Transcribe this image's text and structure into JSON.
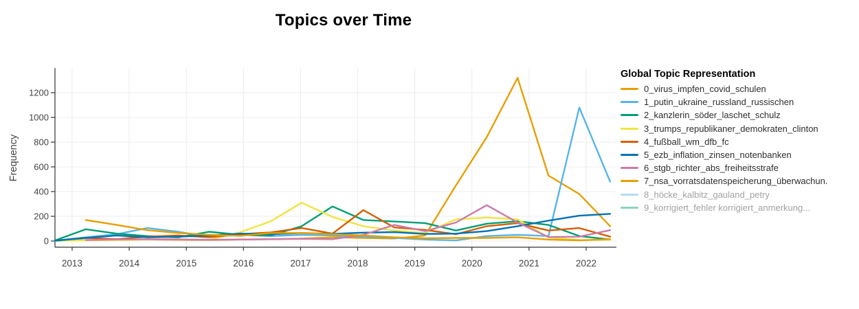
{
  "title": "Topics over Time",
  "y_axis_title": "Frequency",
  "legend": {
    "title": "Global Topic Representation",
    "items": [
      {
        "label": "0_virus_impfen_covid_schulen",
        "color": "#E69F00",
        "muted": false
      },
      {
        "label": "1_putin_ukraine_russland_russischen",
        "color": "#56B4E9",
        "muted": false
      },
      {
        "label": "2_kanzlerin_söder_laschet_schulz",
        "color": "#009E73",
        "muted": false
      },
      {
        "label": "3_trumps_republikaner_demokraten_clinton",
        "color": "#F0E442",
        "muted": false
      },
      {
        "label": "4_fußball_wm_dfb_fc",
        "color": "#D55E00",
        "muted": false
      },
      {
        "label": "5_ezb_inflation_zinsen_notenbanken",
        "color": "#0072B2",
        "muted": false
      },
      {
        "label": "6_stgb_richter_abs_freiheitsstrafe",
        "color": "#CC79A7",
        "muted": false
      },
      {
        "label": "7_nsa_vorratsdatenspeicherung_überwachun.",
        "color": "#E69F00",
        "muted": false
      },
      {
        "label": "8_höcke_kalbitz_gauland_petry",
        "color": "#56B4E9",
        "muted": true
      },
      {
        "label": "9_korrigiert_fehler korrigiert_anmerkung...",
        "color": "#009E73",
        "muted": true
      }
    ]
  },
  "chart_data": {
    "type": "line",
    "title": "Topics over Time",
    "xlabel": "",
    "ylabel": "Frequency",
    "grid": true,
    "legend_position": "right",
    "x_ticks": [
      2013,
      2014,
      2015,
      2016,
      2017,
      2018,
      2019,
      2020,
      2021,
      2022
    ],
    "y_ticks": [
      0,
      200,
      400,
      600,
      800,
      1000,
      1200
    ],
    "x_range": [
      2012.7,
      2022.53
    ],
    "y_range": [
      -50,
      1400
    ],
    "x": [
      2012.7,
      2013.24,
      2013.78,
      2014.32,
      2014.86,
      2015.4,
      2015.94,
      2016.48,
      2017.02,
      2017.56,
      2018.1,
      2018.64,
      2019.18,
      2019.72,
      2020.26,
      2020.8,
      2021.34,
      2021.88,
      2022.42
    ],
    "series": [
      {
        "name": "0_virus_impfen_covid_schulen",
        "color": "#E69F00",
        "visible": true,
        "x": [
          2012.7,
          2013.24,
          2013.78,
          2014.32,
          2014.86,
          2015.4,
          2015.94,
          2016.48,
          2017.02,
          2017.56,
          2018.1,
          2018.64,
          2019.18,
          2019.72,
          2020.26,
          2020.8,
          2021.34,
          2021.88,
          2022.42
        ],
        "values": [
          2,
          8,
          10,
          12,
          10,
          8,
          12,
          15,
          20,
          30,
          25,
          20,
          45,
          450,
          840,
          1320,
          530,
          380,
          120
        ]
      },
      {
        "name": "1_putin_ukraine_russland_russischen",
        "color": "#56B4E9",
        "visible": true,
        "x": [
          2012.7,
          2013.24,
          2013.78,
          2014.32,
          2014.86,
          2015.4,
          2015.94,
          2016.48,
          2017.02,
          2017.56,
          2018.1,
          2018.64,
          2019.18,
          2019.72,
          2020.26,
          2020.8,
          2021.34,
          2021.88,
          2022.42
        ],
        "values": [
          3,
          30,
          55,
          105,
          75,
          35,
          50,
          40,
          50,
          45,
          35,
          25,
          12,
          5,
          40,
          50,
          40,
          1080,
          480
        ]
      },
      {
        "name": "2_kanzlerin_söder_laschet_schulz",
        "color": "#009E73",
        "visible": true,
        "x": [
          2012.7,
          2013.24,
          2013.78,
          2014.32,
          2014.86,
          2015.4,
          2015.94,
          2016.48,
          2017.02,
          2017.56,
          2018.1,
          2018.64,
          2019.18,
          2019.72,
          2020.26,
          2020.8,
          2021.34,
          2021.88,
          2022.42
        ],
        "values": [
          5,
          95,
          60,
          40,
          30,
          75,
          50,
          45,
          120,
          280,
          170,
          158,
          145,
          85,
          140,
          160,
          130,
          40,
          12
        ]
      },
      {
        "name": "3_trumps_republikaner_demokraten_clinton",
        "color": "#F0E442",
        "visible": true,
        "x": [
          2012.7,
          2013.24,
          2013.78,
          2014.32,
          2014.86,
          2015.4,
          2015.94,
          2016.48,
          2017.02,
          2017.56,
          2018.1,
          2018.64,
          2019.18,
          2019.72,
          2020.26,
          2020.8,
          2021.34,
          2021.88,
          2022.42
        ],
        "values": [
          2,
          5,
          8,
          12,
          15,
          10,
          70,
          160,
          310,
          195,
          120,
          85,
          65,
          175,
          190,
          175,
          30,
          8,
          10
        ]
      },
      {
        "name": "4_fußball_wm_dfb_fc",
        "color": "#D55E00",
        "visible": true,
        "x": [
          2013.24,
          2013.78,
          2014.32,
          2014.86,
          2015.4,
          2015.94,
          2016.48,
          2017.02,
          2017.56,
          2018.1,
          2018.64,
          2019.18,
          2019.72,
          2020.26,
          2020.8,
          2021.34,
          2021.88,
          2022.42
        ],
        "values": [
          25,
          15,
          35,
          45,
          30,
          55,
          70,
          105,
          60,
          250,
          110,
          90,
          55,
          120,
          145,
          85,
          105,
          35
        ]
      },
      {
        "name": "5_ezb_inflation_zinsen_notenbanken",
        "color": "#0072B2",
        "visible": true,
        "x": [
          2012.7,
          2013.24,
          2013.78,
          2014.32,
          2014.86,
          2015.4,
          2015.94,
          2016.48,
          2017.02,
          2017.56,
          2018.1,
          2018.64,
          2019.18,
          2019.72,
          2020.26,
          2020.8,
          2021.34,
          2021.88,
          2022.42
        ],
        "values": [
          3,
          25,
          45,
          30,
          35,
          45,
          60,
          55,
          65,
          58,
          68,
          72,
          57,
          60,
          80,
          120,
          165,
          205,
          220
        ]
      },
      {
        "name": "6_stgb_richter_abs_freiheitsstrafe",
        "color": "#CC79A7",
        "visible": true,
        "x": [
          2013.24,
          2013.78,
          2014.32,
          2014.86,
          2015.4,
          2015.94,
          2016.48,
          2017.02,
          2017.56,
          2018.1,
          2018.64,
          2019.18,
          2019.72,
          2020.26,
          2020.8,
          2021.34,
          2021.88,
          2022.42
        ],
        "values": [
          8,
          12,
          15,
          12,
          10,
          12,
          15,
          18,
          15,
          50,
          130,
          80,
          150,
          290,
          150,
          32,
          35,
          88
        ]
      },
      {
        "name": "7_nsa_vorratsdatenspeicherung_überwachun.",
        "color": "#E69F00",
        "visible": true,
        "x": [
          2013.24,
          2013.78,
          2014.32,
          2014.86,
          2015.4,
          2015.94,
          2016.48,
          2017.02,
          2017.56,
          2018.1,
          2018.64,
          2019.18,
          2019.72,
          2020.26,
          2020.8,
          2021.34,
          2021.88,
          2022.42
        ],
        "values": [
          170,
          130,
          88,
          65,
          50,
          42,
          65,
          65,
          55,
          45,
          30,
          22,
          25,
          25,
          30,
          12,
          5,
          15
        ]
      },
      {
        "name": "8_höcke_kalbitz_gauland_petry",
        "color": "#56B4E9",
        "visible": false,
        "x": [],
        "values": []
      },
      {
        "name": "9_korrigiert_fehler korrigiert_anmerkung...",
        "color": "#009E73",
        "visible": false,
        "x": [],
        "values": []
      }
    ]
  },
  "style": {
    "grid_color": "#ececec",
    "axis_color": "#333333",
    "tick_label_color": "#444444",
    "line_width": 2.4
  }
}
